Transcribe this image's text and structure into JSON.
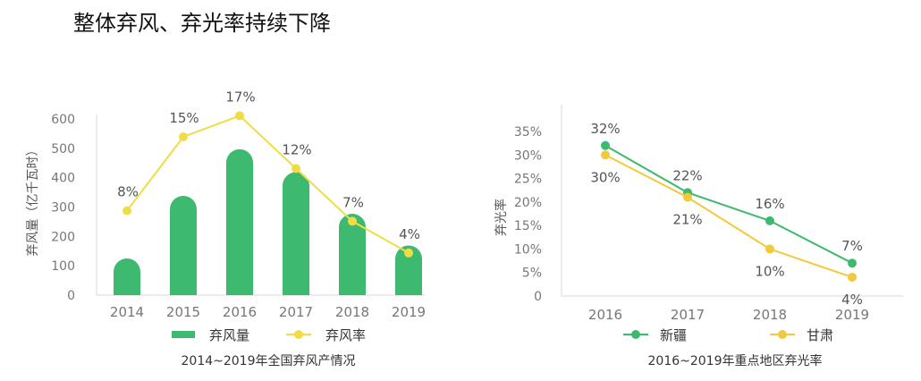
{
  "page": {
    "title": "整体弃风、弃光率持续下降"
  },
  "chart_data": [
    {
      "type": "bar",
      "caption": "2014~2019年全国弃风产情况",
      "categories": [
        "2014",
        "2015",
        "2016",
        "2017",
        "2018",
        "2019"
      ],
      "ylabel": "弃风量（亿千瓦时）",
      "ylim": [
        0,
        600
      ],
      "yticks": [
        0,
        100,
        200,
        300,
        400,
        500,
        600
      ],
      "grid": false,
      "legend": "bottom",
      "colors": {
        "bar": "#3dba6f",
        "line": "#f0dd45"
      },
      "series": [
        {
          "name": "弃风量",
          "type": "bar",
          "values": [
            125,
            338,
            497,
            419,
            277,
            169
          ]
        },
        {
          "name": "弃风率",
          "type": "line",
          "values": [
            8,
            15,
            17,
            12,
            7,
            4
          ],
          "labels": [
            "8%",
            "15%",
            "17%",
            "12%",
            "7%",
            "4%"
          ]
        }
      ]
    },
    {
      "type": "line",
      "caption": "2016~2019年重点地区弃光率",
      "categories": [
        "2016",
        "2017",
        "2018",
        "2019"
      ],
      "ylabel": "弃光率",
      "ylim": [
        0,
        35
      ],
      "yticks": [
        "0",
        "5%",
        "10%",
        "15%",
        "20%",
        "25%",
        "30%",
        "35%"
      ],
      "grid": false,
      "legend": "bottom",
      "series": [
        {
          "name": "新疆",
          "color": "#3dba6f",
          "values": [
            32,
            22,
            16,
            7
          ],
          "labels": [
            "32%",
            "22%",
            "16%",
            "7%"
          ]
        },
        {
          "name": "甘肃",
          "color": "#f2c93a",
          "values": [
            30,
            21,
            10,
            4
          ],
          "labels": [
            "30%",
            "21%",
            "10%",
            "4%"
          ]
        }
      ]
    }
  ]
}
